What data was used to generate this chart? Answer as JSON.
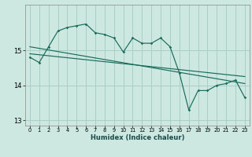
{
  "xlabel": "Humidex (Indice chaleur)",
  "bg_color": "#cce8e0",
  "grid_color": "#aacfc8",
  "line_color": "#1a6b5a",
  "x_data": [
    0,
    1,
    2,
    3,
    4,
    5,
    6,
    7,
    8,
    9,
    10,
    11,
    12,
    13,
    14,
    15,
    16,
    17,
    18,
    19,
    20,
    21,
    22,
    23
  ],
  "y_main": [
    14.8,
    14.65,
    15.1,
    15.55,
    15.65,
    15.7,
    15.75,
    15.5,
    15.45,
    15.35,
    14.95,
    15.35,
    15.2,
    15.2,
    15.35,
    15.1,
    14.35,
    13.3,
    13.85,
    13.85,
    14.0,
    14.05,
    14.15,
    13.65
  ],
  "trend1_x": [
    0,
    23
  ],
  "trend1_y": [
    15.1,
    14.05
  ],
  "trend2_x": [
    0,
    23
  ],
  "trend2_y": [
    14.9,
    14.25
  ],
  "ylim": [
    12.85,
    16.3
  ],
  "xlim": [
    -0.5,
    23.5
  ],
  "yticks": [
    13,
    14,
    15
  ],
  "xticks": [
    0,
    1,
    2,
    3,
    4,
    5,
    6,
    7,
    8,
    9,
    10,
    11,
    12,
    13,
    14,
    15,
    16,
    17,
    18,
    19,
    20,
    21,
    22,
    23
  ]
}
